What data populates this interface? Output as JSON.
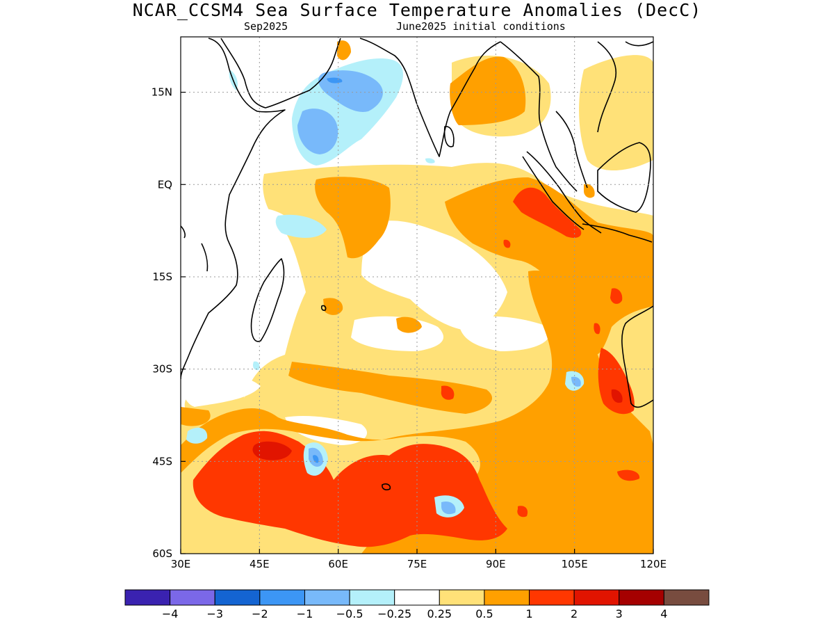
{
  "title": "NCAR_CCSM4 Sea Surface Temperature Anomalies (DecC)",
  "subtitle_left": "Sep2025",
  "subtitle_right": "June2025 initial conditions",
  "map": {
    "lon_range": [
      30,
      120
    ],
    "lat_range": [
      -60,
      24
    ],
    "lon_ticks": [
      {
        "value": 30,
        "label": "30E"
      },
      {
        "value": 45,
        "label": "45E"
      },
      {
        "value": 60,
        "label": "60E"
      },
      {
        "value": 75,
        "label": "75E"
      },
      {
        "value": 90,
        "label": "90E"
      },
      {
        "value": 105,
        "label": "105E"
      },
      {
        "value": 120,
        "label": "120E"
      }
    ],
    "lat_ticks": [
      {
        "value": 15,
        "label": "15N"
      },
      {
        "value": 0,
        "label": "EQ"
      },
      {
        "value": -15,
        "label": "15S"
      },
      {
        "value": -30,
        "label": "30S"
      },
      {
        "value": -45,
        "label": "45S"
      },
      {
        "value": -60,
        "label": "60S"
      }
    ],
    "grid": true
  },
  "colorbar": {
    "colors": [
      "#3a22b0",
      "#7b68e8",
      "#1464d2",
      "#3c96f5",
      "#78b9fa",
      "#b4f0fa",
      "#ffffff",
      "#ffe178",
      "#ffa000",
      "#ff3700",
      "#e11400",
      "#a50000",
      "#784c3f"
    ],
    "labels": [
      "−4",
      "−3",
      "−2",
      "−1",
      "−0.5",
      "−0.25",
      "0.25",
      "0.5",
      "1",
      "2",
      "3",
      "4"
    ]
  }
}
